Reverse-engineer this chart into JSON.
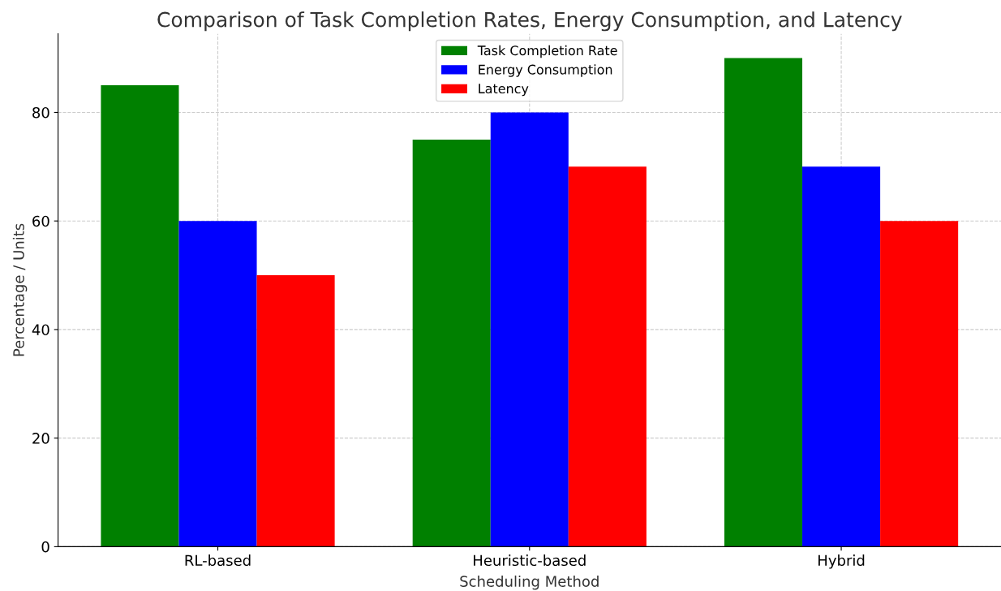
{
  "chart_data": {
    "type": "bar",
    "title": "Comparison of Task Completion Rates, Energy Consumption, and Latency",
    "xlabel": "Scheduling Method",
    "ylabel": "Percentage / Units",
    "categories": [
      "RL-based",
      "Heuristic-based",
      "Hybrid"
    ],
    "series": [
      {
        "name": "Task Completion Rate",
        "color": "#008000",
        "values": [
          85,
          75,
          90
        ]
      },
      {
        "name": "Energy Consumption",
        "color": "#0000ff",
        "values": [
          60,
          80,
          70
        ]
      },
      {
        "name": "Latency",
        "color": "#ff0000",
        "values": [
          50,
          70,
          60
        ]
      }
    ],
    "ylim": [
      0,
      94.5
    ],
    "yticks": [
      0,
      20,
      40,
      60,
      80
    ],
    "grid": true,
    "legend": "top"
  }
}
